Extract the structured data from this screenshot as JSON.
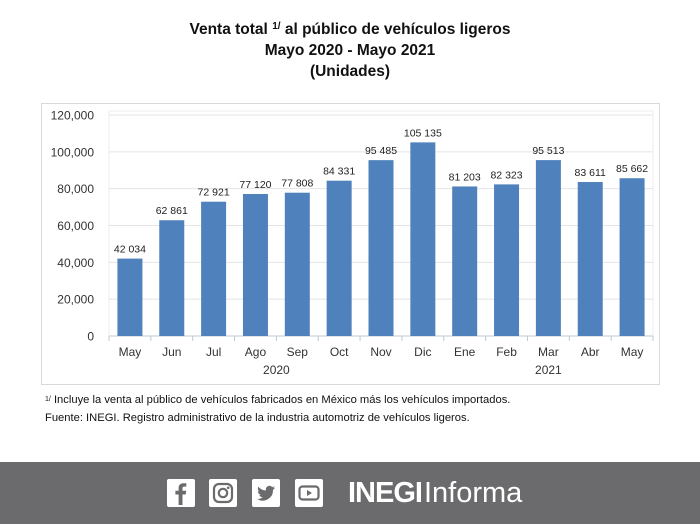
{
  "header": {
    "title_line1_pre": "Venta total",
    "title_sup": "1/",
    "title_line1_post": " al público de vehículos ligeros",
    "title_line2": "Mayo 2020 - Mayo 2021",
    "title_line3": "(Unidades)"
  },
  "chart_data": {
    "type": "bar",
    "title": "Venta total 1/ al público de vehículos ligeros Mayo 2020 - Mayo 2021 (Unidades)",
    "categories": [
      "May",
      "Jun",
      "Jul",
      "Ago",
      "Sep",
      "Oct",
      "Nov",
      "Dic",
      "Ene",
      "Feb",
      "Mar",
      "Abr",
      "May"
    ],
    "values": [
      42034,
      62861,
      72921,
      77120,
      77808,
      84331,
      95485,
      105135,
      81203,
      82323,
      95513,
      83611,
      85662
    ],
    "value_labels": [
      "42 034",
      "62 861",
      "72 921",
      "77 120",
      "77 808",
      "84 331",
      "95 485",
      "105 135",
      "81 203",
      "82 323",
      "95 513",
      "83 611",
      "85 662"
    ],
    "year_groups": [
      {
        "label": "2020",
        "from": 0,
        "to": 7
      },
      {
        "label": "2021",
        "from": 8,
        "to": 12
      }
    ],
    "ylim": [
      0,
      120000
    ],
    "yticks": [
      0,
      20000,
      40000,
      60000,
      80000,
      100000,
      120000
    ],
    "ytick_labels": [
      "0",
      "20,000",
      "40,000",
      "60,000",
      "80,000",
      "100,000",
      "120,000"
    ],
    "xlabel": "",
    "ylabel": "",
    "grid": true,
    "legend": "none",
    "bar_color": "#4f81bd"
  },
  "notes": {
    "footnote_sup": "1/",
    "footnote_text": " Incluye la venta al público de vehículos fabricados en México más los vehículos importados.",
    "source": "Fuente: INEGI. Registro administrativo de la industria automotriz de vehículos ligeros."
  },
  "footer": {
    "icons": [
      "facebook-icon",
      "instagram-icon",
      "twitter-icon",
      "youtube-icon"
    ],
    "brand_bold": "INEGI",
    "brand_light": "Informa",
    "bg_color": "#6b6b6d"
  }
}
